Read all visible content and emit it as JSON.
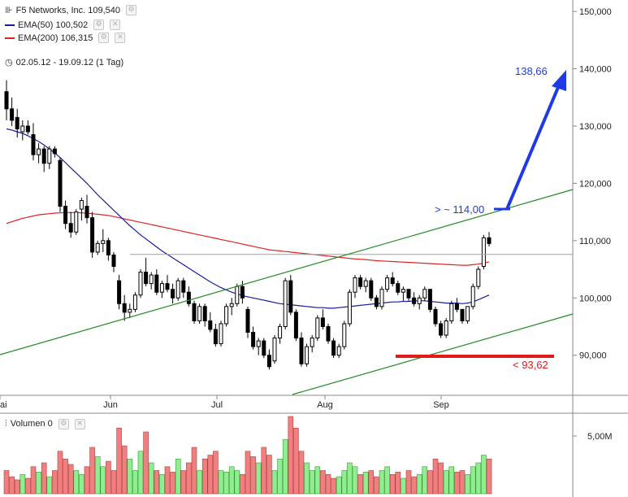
{
  "header": {
    "title": "F5 Networks, Inc. 109,540",
    "ema50": "EMA(50) 100,502",
    "ema200": "EMA(200) 106,315",
    "period": "02.05.12 - 19.09.12 (1 Tag)"
  },
  "volume_panel": {
    "label": "Volumen 0",
    "tick": "5,00M"
  },
  "colors": {
    "up": "#90ee90",
    "down": "#f08080",
    "ema50": "#1a1aa0",
    "ema200": "#dd2222",
    "trend": "#228b22",
    "arrow": "#1e3ae6",
    "support": "#e31a1a",
    "resistance_text": "#1e3ae6"
  },
  "chart_data": {
    "type": "candlestick",
    "y_ticks": [
      "150,000",
      "140,000",
      "130,000",
      "120,000",
      "110,000",
      "100,000",
      "90,000"
    ],
    "x_ticks": [
      "ai",
      "Jun",
      "Jul",
      "Aug",
      "Sep"
    ],
    "ylim": [
      83,
      152
    ],
    "annotations": {
      "target_label": "138,66",
      "resistance_label": "> ~ 114,00",
      "support_label": "< 93,62",
      "horizontal_level": 107.6
    },
    "ohlc": [
      [
        136.0,
        138.0,
        131.0,
        133.0
      ],
      [
        133.0,
        135.0,
        130.0,
        131.0
      ],
      [
        131.5,
        133.0,
        128.0,
        129.5
      ],
      [
        129.0,
        131.0,
        127.5,
        130.0
      ],
      [
        130.0,
        131.0,
        128.5,
        129.0
      ],
      [
        128.5,
        130.5,
        124.0,
        125.0
      ],
      [
        125.0,
        127.0,
        123.5,
        126.0
      ],
      [
        126.0,
        126.5,
        122.0,
        123.5
      ],
      [
        123.5,
        126.5,
        122.5,
        126.0
      ],
      [
        126.0,
        126.5,
        124.5,
        125.2
      ],
      [
        124.0,
        124.5,
        115.0,
        116.0
      ],
      [
        116.0,
        117.0,
        112.0,
        113.0
      ],
      [
        113.0,
        115.0,
        110.5,
        111.5
      ],
      [
        111.5,
        115.5,
        111.0,
        115.0
      ],
      [
        115.5,
        117.5,
        113.5,
        117.0
      ],
      [
        116.0,
        118.0,
        113.0,
        114.0
      ],
      [
        114.0,
        115.0,
        107.0,
        108.0
      ],
      [
        108.0,
        110.0,
        107.5,
        109.5
      ],
      [
        109.5,
        112.0,
        108.0,
        110.0
      ],
      [
        110.0,
        110.5,
        106.5,
        107.5
      ],
      [
        107.5,
        108.0,
        104.5,
        105.5
      ],
      [
        103.0,
        104.0,
        98.0,
        99.0
      ],
      [
        99.0,
        100.5,
        96.0,
        97.5
      ],
      [
        97.5,
        99.0,
        96.5,
        98.0
      ],
      [
        98.0,
        101.0,
        97.5,
        100.5
      ],
      [
        100.5,
        105.0,
        100.0,
        104.5
      ],
      [
        104.5,
        107.0,
        102.0,
        102.5
      ],
      [
        102.5,
        104.5,
        101.5,
        104.0
      ],
      [
        104.0,
        105.0,
        100.5,
        101.0
      ],
      [
        101.0,
        103.0,
        100.0,
        102.5
      ],
      [
        102.5,
        104.0,
        101.0,
        101.5
      ],
      [
        101.5,
        102.5,
        99.0,
        100.0
      ],
      [
        100.0,
        103.5,
        99.5,
        103.0
      ],
      [
        103.0,
        103.5,
        100.0,
        101.0
      ],
      [
        101.0,
        102.0,
        98.5,
        99.0
      ],
      [
        99.0,
        99.5,
        95.5,
        96.0
      ],
      [
        96.0,
        99.0,
        95.5,
        98.5
      ],
      [
        98.5,
        99.0,
        95.0,
        96.0
      ],
      [
        96.0,
        97.5,
        94.0,
        94.5
      ],
      [
        94.5,
        95.5,
        91.5,
        92.0
      ],
      [
        92.0,
        96.0,
        91.5,
        95.5
      ],
      [
        95.5,
        99.0,
        95.0,
        98.5
      ],
      [
        98.5,
        100.0,
        97.0,
        99.0
      ],
      [
        99.0,
        102.5,
        98.5,
        102.0
      ],
      [
        102.0,
        103.0,
        99.0,
        100.0
      ],
      [
        98.0,
        98.5,
        93.0,
        94.0
      ],
      [
        94.0,
        95.0,
        91.0,
        91.5
      ],
      [
        91.5,
        93.0,
        90.0,
        92.5
      ],
      [
        92.5,
        93.0,
        89.5,
        90.0
      ],
      [
        90.0,
        91.0,
        87.5,
        88.0
      ],
      [
        89.0,
        93.5,
        88.5,
        93.0
      ],
      [
        93.0,
        95.5,
        92.0,
        95.0
      ],
      [
        95.0,
        103.5,
        94.5,
        103.0
      ],
      [
        103.0,
        104.0,
        97.0,
        97.5
      ],
      [
        97.5,
        98.0,
        92.5,
        93.0
      ],
      [
        93.0,
        94.0,
        88.0,
        88.5
      ],
      [
        88.5,
        92.0,
        88.0,
        91.5
      ],
      [
        91.5,
        93.5,
        90.5,
        93.0
      ],
      [
        93.0,
        97.0,
        92.5,
        96.5
      ],
      [
        96.5,
        98.0,
        94.5,
        95.0
      ],
      [
        95.0,
        95.5,
        92.0,
        92.5
      ],
      [
        92.5,
        93.0,
        89.5,
        90.0
      ],
      [
        90.0,
        92.0,
        89.5,
        91.5
      ],
      [
        91.5,
        96.0,
        91.0,
        95.5
      ],
      [
        95.5,
        101.5,
        95.0,
        101.0
      ],
      [
        101.0,
        104.0,
        100.0,
        103.5
      ],
      [
        103.5,
        104.0,
        101.5,
        102.0
      ],
      [
        102.0,
        103.5,
        101.0,
        103.0
      ],
      [
        103.0,
        103.5,
        99.5,
        100.0
      ],
      [
        100.0,
        100.5,
        98.0,
        98.5
      ],
      [
        98.5,
        102.0,
        98.0,
        101.5
      ],
      [
        101.5,
        104.0,
        101.0,
        103.5
      ],
      [
        103.5,
        104.5,
        102.0,
        102.5
      ],
      [
        102.5,
        103.0,
        100.5,
        101.0
      ],
      [
        101.0,
        102.0,
        99.5,
        101.5
      ],
      [
        101.5,
        101.5,
        99.5,
        100.0
      ],
      [
        100.0,
        101.0,
        98.5,
        99.0
      ],
      [
        99.0,
        100.5,
        98.0,
        100.0
      ],
      [
        100.0,
        102.0,
        99.5,
        101.5
      ],
      [
        101.5,
        101.5,
        97.5,
        98.0
      ],
      [
        98.0,
        98.5,
        95.0,
        95.5
      ],
      [
        95.5,
        96.0,
        93.0,
        93.5
      ],
      [
        93.5,
        96.5,
        93.0,
        96.0
      ],
      [
        96.0,
        99.5,
        95.5,
        99.0
      ],
      [
        99.0,
        100.0,
        97.5,
        98.0
      ],
      [
        98.0,
        98.0,
        95.5,
        96.0
      ],
      [
        96.0,
        98.5,
        95.5,
        98.5
      ],
      [
        98.5,
        102.5,
        98.0,
        102.0
      ],
      [
        102.0,
        105.5,
        101.5,
        105.0
      ],
      [
        105.5,
        111.0,
        105.0,
        110.5
      ],
      [
        110.5,
        111.5,
        109.0,
        109.5
      ]
    ],
    "ema50": [
      129.5,
      129.3,
      129.0,
      128.7,
      128.3,
      127.8,
      127.3,
      126.7,
      126.0,
      125.3,
      124.5,
      123.6,
      122.7,
      121.8,
      120.9,
      120.0,
      119.0,
      118.0,
      117.1,
      116.2,
      115.3,
      114.4,
      113.5,
      112.6,
      111.8,
      111.0,
      110.3,
      109.6,
      108.9,
      108.2,
      107.6,
      107.0,
      106.4,
      105.8,
      105.2,
      104.6,
      104.0,
      103.4,
      102.8,
      102.3,
      101.8,
      101.4,
      101.0,
      100.7,
      100.4,
      100.2,
      100.0,
      99.8,
      99.6,
      99.4,
      99.2,
      99.0,
      98.9,
      98.8,
      98.7,
      98.6,
      98.5,
      98.4,
      98.3,
      98.3,
      98.2,
      98.2,
      98.3,
      98.4,
      98.5,
      98.6,
      98.7,
      98.8,
      98.9,
      99.0,
      99.1,
      99.2,
      99.3,
      99.3,
      99.4,
      99.4,
      99.5,
      99.5,
      99.5,
      99.4,
      99.3,
      99.2,
      99.1,
      99.1,
      99.1,
      99.0,
      99.1,
      99.3,
      99.7,
      100.1,
      100.5
    ],
    "ema200": [
      113.0,
      113.3,
      113.6,
      113.9,
      114.1,
      114.3,
      114.5,
      114.6,
      114.7,
      114.8,
      114.85,
      114.9,
      114.9,
      114.9,
      114.85,
      114.8,
      114.7,
      114.6,
      114.5,
      114.4,
      114.2,
      114.0,
      113.8,
      113.6,
      113.4,
      113.2,
      113.0,
      112.8,
      112.6,
      112.4,
      112.2,
      112.0,
      111.8,
      111.6,
      111.4,
      111.2,
      111.0,
      110.8,
      110.6,
      110.4,
      110.2,
      110.0,
      109.8,
      109.6,
      109.4,
      109.2,
      109.0,
      108.8,
      108.6,
      108.4,
      108.3,
      108.2,
      108.1,
      108.0,
      107.9,
      107.8,
      107.7,
      107.6,
      107.5,
      107.4,
      107.3,
      107.2,
      107.1,
      107.0,
      106.9,
      106.8,
      106.75,
      106.7,
      106.6,
      106.5,
      106.45,
      106.4,
      106.35,
      106.3,
      106.25,
      106.2,
      106.15,
      106.1,
      106.05,
      106.0,
      105.95,
      105.9,
      105.85,
      105.8,
      105.75,
      105.7,
      105.7,
      105.8,
      105.9,
      106.1,
      106.3
    ],
    "volume_rel": [
      0.3,
      0.22,
      0.18,
      0.25,
      0.2,
      0.35,
      0.28,
      0.4,
      0.22,
      0.3,
      0.55,
      0.45,
      0.38,
      0.3,
      0.25,
      0.35,
      0.6,
      0.48,
      0.35,
      0.42,
      0.3,
      0.85,
      0.62,
      0.45,
      0.3,
      0.55,
      0.8,
      0.4,
      0.3,
      0.25,
      0.35,
      0.28,
      0.45,
      0.3,
      0.4,
      0.6,
      0.3,
      0.45,
      0.5,
      0.55,
      0.3,
      0.28,
      0.35,
      0.3,
      0.25,
      0.55,
      0.48,
      0.4,
      0.6,
      0.5,
      0.3,
      0.45,
      0.7,
      1.0,
      0.85,
      0.55,
      0.4,
      0.3,
      0.35,
      0.3,
      0.25,
      0.2,
      0.22,
      0.3,
      0.4,
      0.35,
      0.25,
      0.28,
      0.3,
      0.22,
      0.3,
      0.35,
      0.25,
      0.28,
      0.2,
      0.3,
      0.22,
      0.25,
      0.35,
      0.3,
      0.45,
      0.4,
      0.3,
      0.35,
      0.28,
      0.3,
      0.25,
      0.35,
      0.4,
      0.5,
      0.45
    ],
    "volume_up": [
      false,
      false,
      false,
      true,
      false,
      false,
      true,
      false,
      true,
      false,
      false,
      false,
      false,
      true,
      true,
      false,
      false,
      true,
      true,
      false,
      false,
      false,
      false,
      true,
      true,
      true,
      false,
      true,
      false,
      true,
      false,
      false,
      true,
      false,
      false,
      false,
      true,
      false,
      false,
      false,
      true,
      true,
      true,
      true,
      false,
      false,
      false,
      true,
      false,
      false,
      true,
      true,
      true,
      false,
      false,
      false,
      true,
      true,
      true,
      false,
      false,
      false,
      true,
      true,
      true,
      true,
      false,
      true,
      false,
      false,
      true,
      true,
      false,
      false,
      true,
      false,
      false,
      true,
      true,
      false,
      false,
      false,
      true,
      true,
      false,
      false,
      true,
      true,
      true,
      true,
      false
    ]
  }
}
